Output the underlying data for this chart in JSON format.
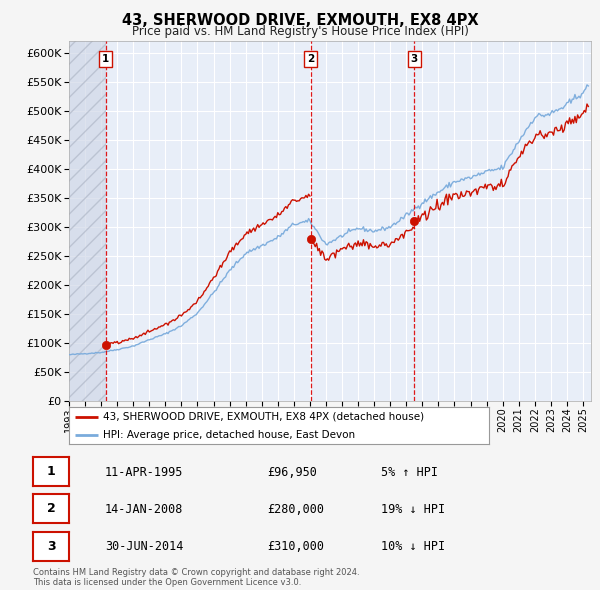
{
  "title_line1": "43, SHERWOOD DRIVE, EXMOUTH, EX8 4PX",
  "title_line2": "Price paid vs. HM Land Registry's House Price Index (HPI)",
  "background_color": "#f0f0f0",
  "plot_bg_color": "#e8eef8",
  "hatch_region_end_year": 1995.28,
  "sale_dates": [
    1995.28,
    2008.04,
    2014.5
  ],
  "sale_prices": [
    96950,
    280000,
    310000
  ],
  "sale_labels": [
    "1",
    "2",
    "3"
  ],
  "legend_line1": "43, SHERWOOD DRIVE, EXMOUTH, EX8 4PX (detached house)",
  "legend_line2": "HPI: Average price, detached house, East Devon",
  "table_rows": [
    [
      "1",
      "11-APR-1995",
      "£96,950",
      "5% ↑ HPI"
    ],
    [
      "2",
      "14-JAN-2008",
      "£280,000",
      "19% ↓ HPI"
    ],
    [
      "3",
      "30-JUN-2014",
      "£310,000",
      "10% ↓ HPI"
    ]
  ],
  "footer": "Contains HM Land Registry data © Crown copyright and database right 2024.\nThis data is licensed under the Open Government Licence v3.0.",
  "ylim": [
    0,
    620000
  ],
  "xlim_start": 1993.0,
  "xlim_end": 2025.5,
  "hpi_color": "#7aabdc",
  "price_color": "#cc1100",
  "dot_color": "#cc1100",
  "vline_color": "#dd0000",
  "grid_color": "#ffffff",
  "hpi_key_years": [
    1993.0,
    1994.0,
    1995.0,
    1996.0,
    1997.0,
    1998.0,
    1999.0,
    2000.0,
    2001.0,
    2002.0,
    2003.0,
    2004.0,
    2005.0,
    2006.0,
    2007.0,
    2008.0,
    2009.0,
    2010.0,
    2011.0,
    2012.0,
    2013.0,
    2014.0,
    2015.0,
    2016.0,
    2017.0,
    2018.0,
    2019.0,
    2020.0,
    2021.0,
    2022.0,
    2023.0,
    2024.0,
    2025.3
  ],
  "hpi_key_vals": [
    80000,
    82000,
    84000,
    89000,
    95000,
    106000,
    116000,
    130000,
    152000,
    187000,
    225000,
    255000,
    268000,
    282000,
    305000,
    310000,
    270000,
    285000,
    298000,
    293000,
    300000,
    320000,
    342000,
    360000,
    378000,
    385000,
    395000,
    402000,
    448000,
    490000,
    495000,
    510000,
    540000
  ]
}
